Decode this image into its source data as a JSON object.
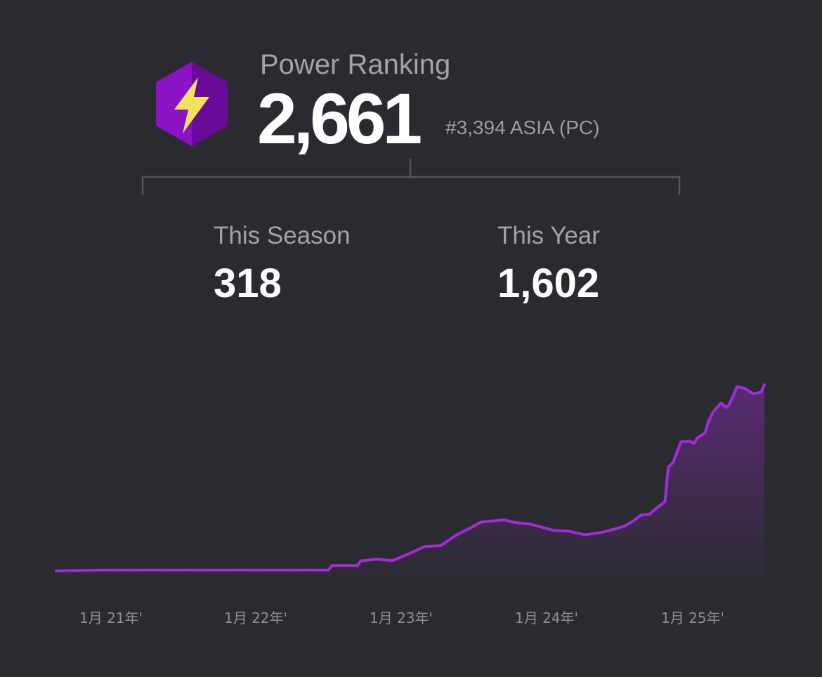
{
  "header": {
    "title": "Power Ranking",
    "score": "2,661",
    "rank": "#3,394 ASIA (PC)",
    "badge_icon": "lightning-hexagon-icon"
  },
  "stats": [
    {
      "label": "This Season",
      "value": "318"
    },
    {
      "label": "This Year",
      "value": "1,602"
    }
  ],
  "colors": {
    "background": "#2a2b30",
    "line": "#a42bdb",
    "badge": "#8c12c6",
    "bolt": "#f0e35c"
  },
  "chart_data": {
    "type": "area",
    "x_ticks": [
      "1月 21年'",
      "1月 22年'",
      "1月 23年'",
      "1月 24年'",
      "1月 25年'"
    ],
    "x": [
      2020.9,
      2021.0,
      2021.2,
      2021.5,
      2021.8,
      2022.0,
      2022.2,
      2022.4,
      2022.6,
      2022.62,
      2022.7,
      2022.78,
      2022.8,
      2022.9,
      2023.0,
      2023.1,
      2023.2,
      2023.3,
      2023.4,
      2023.5,
      2023.55,
      2023.6,
      2023.7,
      2023.75,
      2023.85,
      2023.9,
      2024.0,
      2024.1,
      2024.2,
      2024.3,
      2024.4,
      2024.45,
      2024.5,
      2024.55,
      2024.6,
      2024.65,
      2024.7,
      2024.72,
      2024.75,
      2024.8,
      2024.83,
      2024.85,
      2024.88,
      2024.9,
      2024.95,
      2024.97,
      2025.0,
      2025.05,
      2025.08,
      2025.1,
      2025.15,
      2025.2,
      2025.25,
      2025.3,
      2025.32
    ],
    "values": [
      0,
      5,
      10,
      10,
      10,
      10,
      10,
      10,
      10,
      60,
      60,
      60,
      110,
      130,
      115,
      190,
      270,
      280,
      400,
      490,
      540,
      550,
      565,
      540,
      520,
      500,
      450,
      440,
      400,
      425,
      470,
      500,
      550,
      620,
      625,
      700,
      770,
      1150,
      1200,
      1430,
      1430,
      1440,
      1410,
      1470,
      1530,
      1650,
      1760,
      1860,
      1810,
      1840,
      2040,
      2020,
      1960,
      1980,
      2060
    ],
    "xlabel": "",
    "ylabel": "",
    "grid": false
  }
}
